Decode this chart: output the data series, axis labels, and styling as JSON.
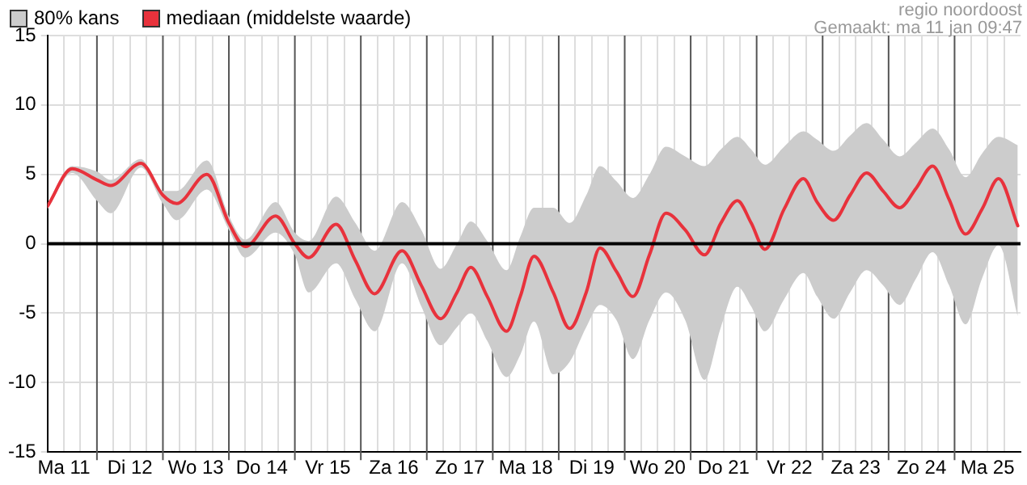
{
  "chart_data": {
    "type": "line",
    "legend": "top left",
    "grid": true,
    "marker": "none",
    "line_style": "solid",
    "annotations": [
      "80% kans",
      "regio noordoost",
      "Gemaakt: ma 11 jan 09:47"
    ],
    "x": [
      "--01-11T06:00",
      "--01-11T15:00",
      "--01-12T00:00",
      "--01-12T05:00",
      "--01-12T16:00",
      "--01-13T00:00",
      "--01-13T05:00",
      "--01-13T16:00",
      "--01-14T00:00",
      "--01-14T06:00",
      "--01-14T17:00",
      "--01-15T00:00",
      "--01-15T05:00",
      "--01-15T15:00",
      "--01-15T22:00",
      "--01-16T05:00",
      "--01-16T15:00",
      "--01-16T22:00",
      "--01-17T05:00",
      "--01-17T11:00",
      "--01-17T16:00",
      "--01-17T22:00",
      "--01-18T05:00",
      "--01-18T10:00",
      "--01-18T15:00",
      "--01-18T22:00",
      "--01-19T04:00",
      "--01-19T10:00",
      "--01-19T15:00",
      "--01-19T21:00",
      "--01-20T03:00",
      "--01-20T09:00",
      "--01-20T15:00",
      "--01-20T22:00",
      "--01-21T05:00",
      "--01-21T11:00",
      "--01-21T17:00",
      "--01-21T22:00",
      "--01-22T03:00",
      "--01-22T10:00",
      "--01-22T17:00",
      "--01-22T22:00",
      "--01-23T04:00",
      "--01-23T10:00",
      "--01-23T16:00",
      "--01-23T22:00",
      "--01-24T04:00",
      "--01-24T10:00",
      "--01-24T16:00",
      "--01-24T22:00",
      "--01-25T04:00",
      "--01-25T10:00",
      "--01-25T16:00",
      "--01-25T23:00"
    ],
    "xlim": [
      "--01-11T06:00",
      "--01-26T00:00"
    ],
    "xticks": [
      {
        "value": "--01-11T06:00",
        "label": null
      },
      {
        "value": "--01-11T12:00",
        "label": "Ma 11"
      },
      {
        "value": "--01-11T18:00",
        "label": null
      },
      {
        "value": "--01-12T06:00",
        "label": null
      },
      {
        "value": "--01-12T12:00",
        "label": "Di 12"
      },
      {
        "value": "--01-12T18:00",
        "label": null
      },
      {
        "value": "--01-13T06:00",
        "label": null
      },
      {
        "value": "--01-13T12:00",
        "label": "Wo 13"
      },
      {
        "value": "--01-13T18:00",
        "label": null
      },
      {
        "value": "--01-14T06:00",
        "label": null
      },
      {
        "value": "--01-14T12:00",
        "label": "Do 14"
      },
      {
        "value": "--01-14T18:00",
        "label": null
      },
      {
        "value": "--01-15T06:00",
        "label": null
      },
      {
        "value": "--01-15T12:00",
        "label": "Vr 15"
      },
      {
        "value": "--01-15T18:00",
        "label": null
      },
      {
        "value": "--01-16T06:00",
        "label": null
      },
      {
        "value": "--01-16T12:00",
        "label": "Za 16"
      },
      {
        "value": "--01-16T18:00",
        "label": null
      },
      {
        "value": "--01-17T06:00",
        "label": null
      },
      {
        "value": "--01-17T12:00",
        "label": "Zo 17"
      },
      {
        "value": "--01-17T18:00",
        "label": null
      },
      {
        "value": "--01-18T06:00",
        "label": null
      },
      {
        "value": "--01-18T12:00",
        "label": "Ma 18"
      },
      {
        "value": "--01-18T18:00",
        "label": null
      },
      {
        "value": "--01-19T06:00",
        "label": null
      },
      {
        "value": "--01-19T12:00",
        "label": "Di 19"
      },
      {
        "value": "--01-19T18:00",
        "label": null
      },
      {
        "value": "--01-20T06:00",
        "label": null
      },
      {
        "value": "--01-20T12:00",
        "label": "Wo 20"
      },
      {
        "value": "--01-20T18:00",
        "label": null
      },
      {
        "value": "--01-21T06:00",
        "label": null
      },
      {
        "value": "--01-21T12:00",
        "label": "Do 21"
      },
      {
        "value": "--01-21T18:00",
        "label": null
      },
      {
        "value": "--01-22T06:00",
        "label": null
      },
      {
        "value": "--01-22T12:00",
        "label": "Vr 22"
      },
      {
        "value": "--01-22T18:00",
        "label": null
      },
      {
        "value": "--01-23T06:00",
        "label": null
      },
      {
        "value": "--01-23T12:00",
        "label": "Za 23"
      },
      {
        "value": "--01-23T18:00",
        "label": null
      },
      {
        "value": "--01-24T06:00",
        "label": null
      },
      {
        "value": "--01-24T12:00",
        "label": "Zo 24"
      },
      {
        "value": "--01-24T18:00",
        "label": null
      },
      {
        "value": "--01-25T06:00",
        "label": null
      },
      {
        "value": "--01-25T12:00",
        "label": "Ma 25"
      },
      {
        "value": "--01-25T18:00",
        "label": null
      }
    ],
    "ylim": [
      -15,
      15
    ],
    "yticks": [
      -15,
      -10,
      -5,
      0,
      5,
      10,
      15
    ],
    "ref_lines": [
      {
        "axis": "y",
        "value": 0,
        "color": "#000000"
      },
      {
        "axis": "x",
        "value": "--01-12T00:00",
        "color": "#555555"
      },
      {
        "axis": "x",
        "value": "--01-13T00:00",
        "color": "#555555"
      },
      {
        "axis": "x",
        "value": "--01-14T00:00",
        "color": "#555555"
      },
      {
        "axis": "x",
        "value": "--01-15T00:00",
        "color": "#555555"
      },
      {
        "axis": "x",
        "value": "--01-16T00:00",
        "color": "#555555"
      },
      {
        "axis": "x",
        "value": "--01-17T00:00",
        "color": "#555555"
      },
      {
        "axis": "x",
        "value": "--01-18T00:00",
        "color": "#555555"
      },
      {
        "axis": "x",
        "value": "--01-19T00:00",
        "color": "#555555"
      },
      {
        "axis": "x",
        "value": "--01-20T00:00",
        "color": "#555555"
      },
      {
        "axis": "x",
        "value": "--01-21T00:00",
        "color": "#555555"
      },
      {
        "axis": "x",
        "value": "--01-22T00:00",
        "color": "#555555"
      },
      {
        "axis": "x",
        "value": "--01-23T00:00",
        "color": "#555555"
      },
      {
        "axis": "x",
        "value": "--01-24T00:00",
        "color": "#555555"
      },
      {
        "axis": "x",
        "value": "--01-25T00:00",
        "color": "#555555"
      }
    ],
    "series": [
      {
        "name": "mediaan (middelste waarde)",
        "color": "#e8323c",
        "values": [
          2.7,
          5.4,
          4.6,
          4.2,
          5.8,
          3.5,
          2.9,
          5.0,
          1.5,
          -0.2,
          2.0,
          0.0,
          -1.0,
          1.4,
          -1.2,
          -3.6,
          -0.5,
          -3.0,
          -5.4,
          -3.5,
          -1.7,
          -3.8,
          -6.3,
          -3.8,
          -0.9,
          -3.5,
          -6.1,
          -3.5,
          -0.3,
          -2.0,
          -3.8,
          -0.8,
          2.2,
          1.0,
          -0.8,
          1.5,
          3.1,
          1.5,
          -0.4,
          2.5,
          4.7,
          3.0,
          1.7,
          3.5,
          5.1,
          3.8,
          2.6,
          4.0,
          5.6,
          3.2,
          0.7,
          2.5,
          4.7,
          1.3
        ],
        "lower": [
          2.5,
          5.1,
          3.1,
          2.2,
          5.5,
          2.9,
          1.7,
          3.9,
          1.0,
          -1.0,
          0.8,
          -0.8,
          -3.5,
          -1.4,
          -4.0,
          -6.3,
          -1.4,
          -4.5,
          -7.3,
          -6.0,
          -5.0,
          -7.0,
          -9.6,
          -8.0,
          -5.6,
          -9.4,
          -8.5,
          -6.0,
          -4.4,
          -5.5,
          -8.3,
          -5.5,
          -3.5,
          -5.5,
          -9.8,
          -6.0,
          -3.1,
          -4.5,
          -6.3,
          -4.0,
          -2.1,
          -3.8,
          -5.4,
          -3.5,
          -1.9,
          -3.0,
          -4.4,
          -2.5,
          -0.6,
          -3.0,
          -5.8,
          -2.5,
          -0.1,
          -5.2
        ],
        "upper": [
          2.9,
          5.6,
          5.2,
          4.6,
          6.1,
          3.8,
          3.8,
          6.0,
          2.0,
          0.3,
          3.0,
          0.8,
          0.2,
          3.4,
          1.5,
          -0.5,
          3.0,
          1.0,
          -1.8,
          0.0,
          1.6,
          0.2,
          -1.9,
          0.5,
          2.6,
          2.6,
          1.5,
          3.5,
          5.6,
          4.5,
          3.3,
          5.0,
          7.0,
          6.3,
          5.6,
          6.8,
          7.7,
          6.8,
          5.7,
          7.0,
          8.1,
          7.5,
          6.7,
          7.8,
          8.7,
          7.5,
          6.3,
          7.3,
          8.3,
          6.8,
          4.8,
          6.5,
          7.7,
          7.1
        ]
      }
    ]
  }
}
